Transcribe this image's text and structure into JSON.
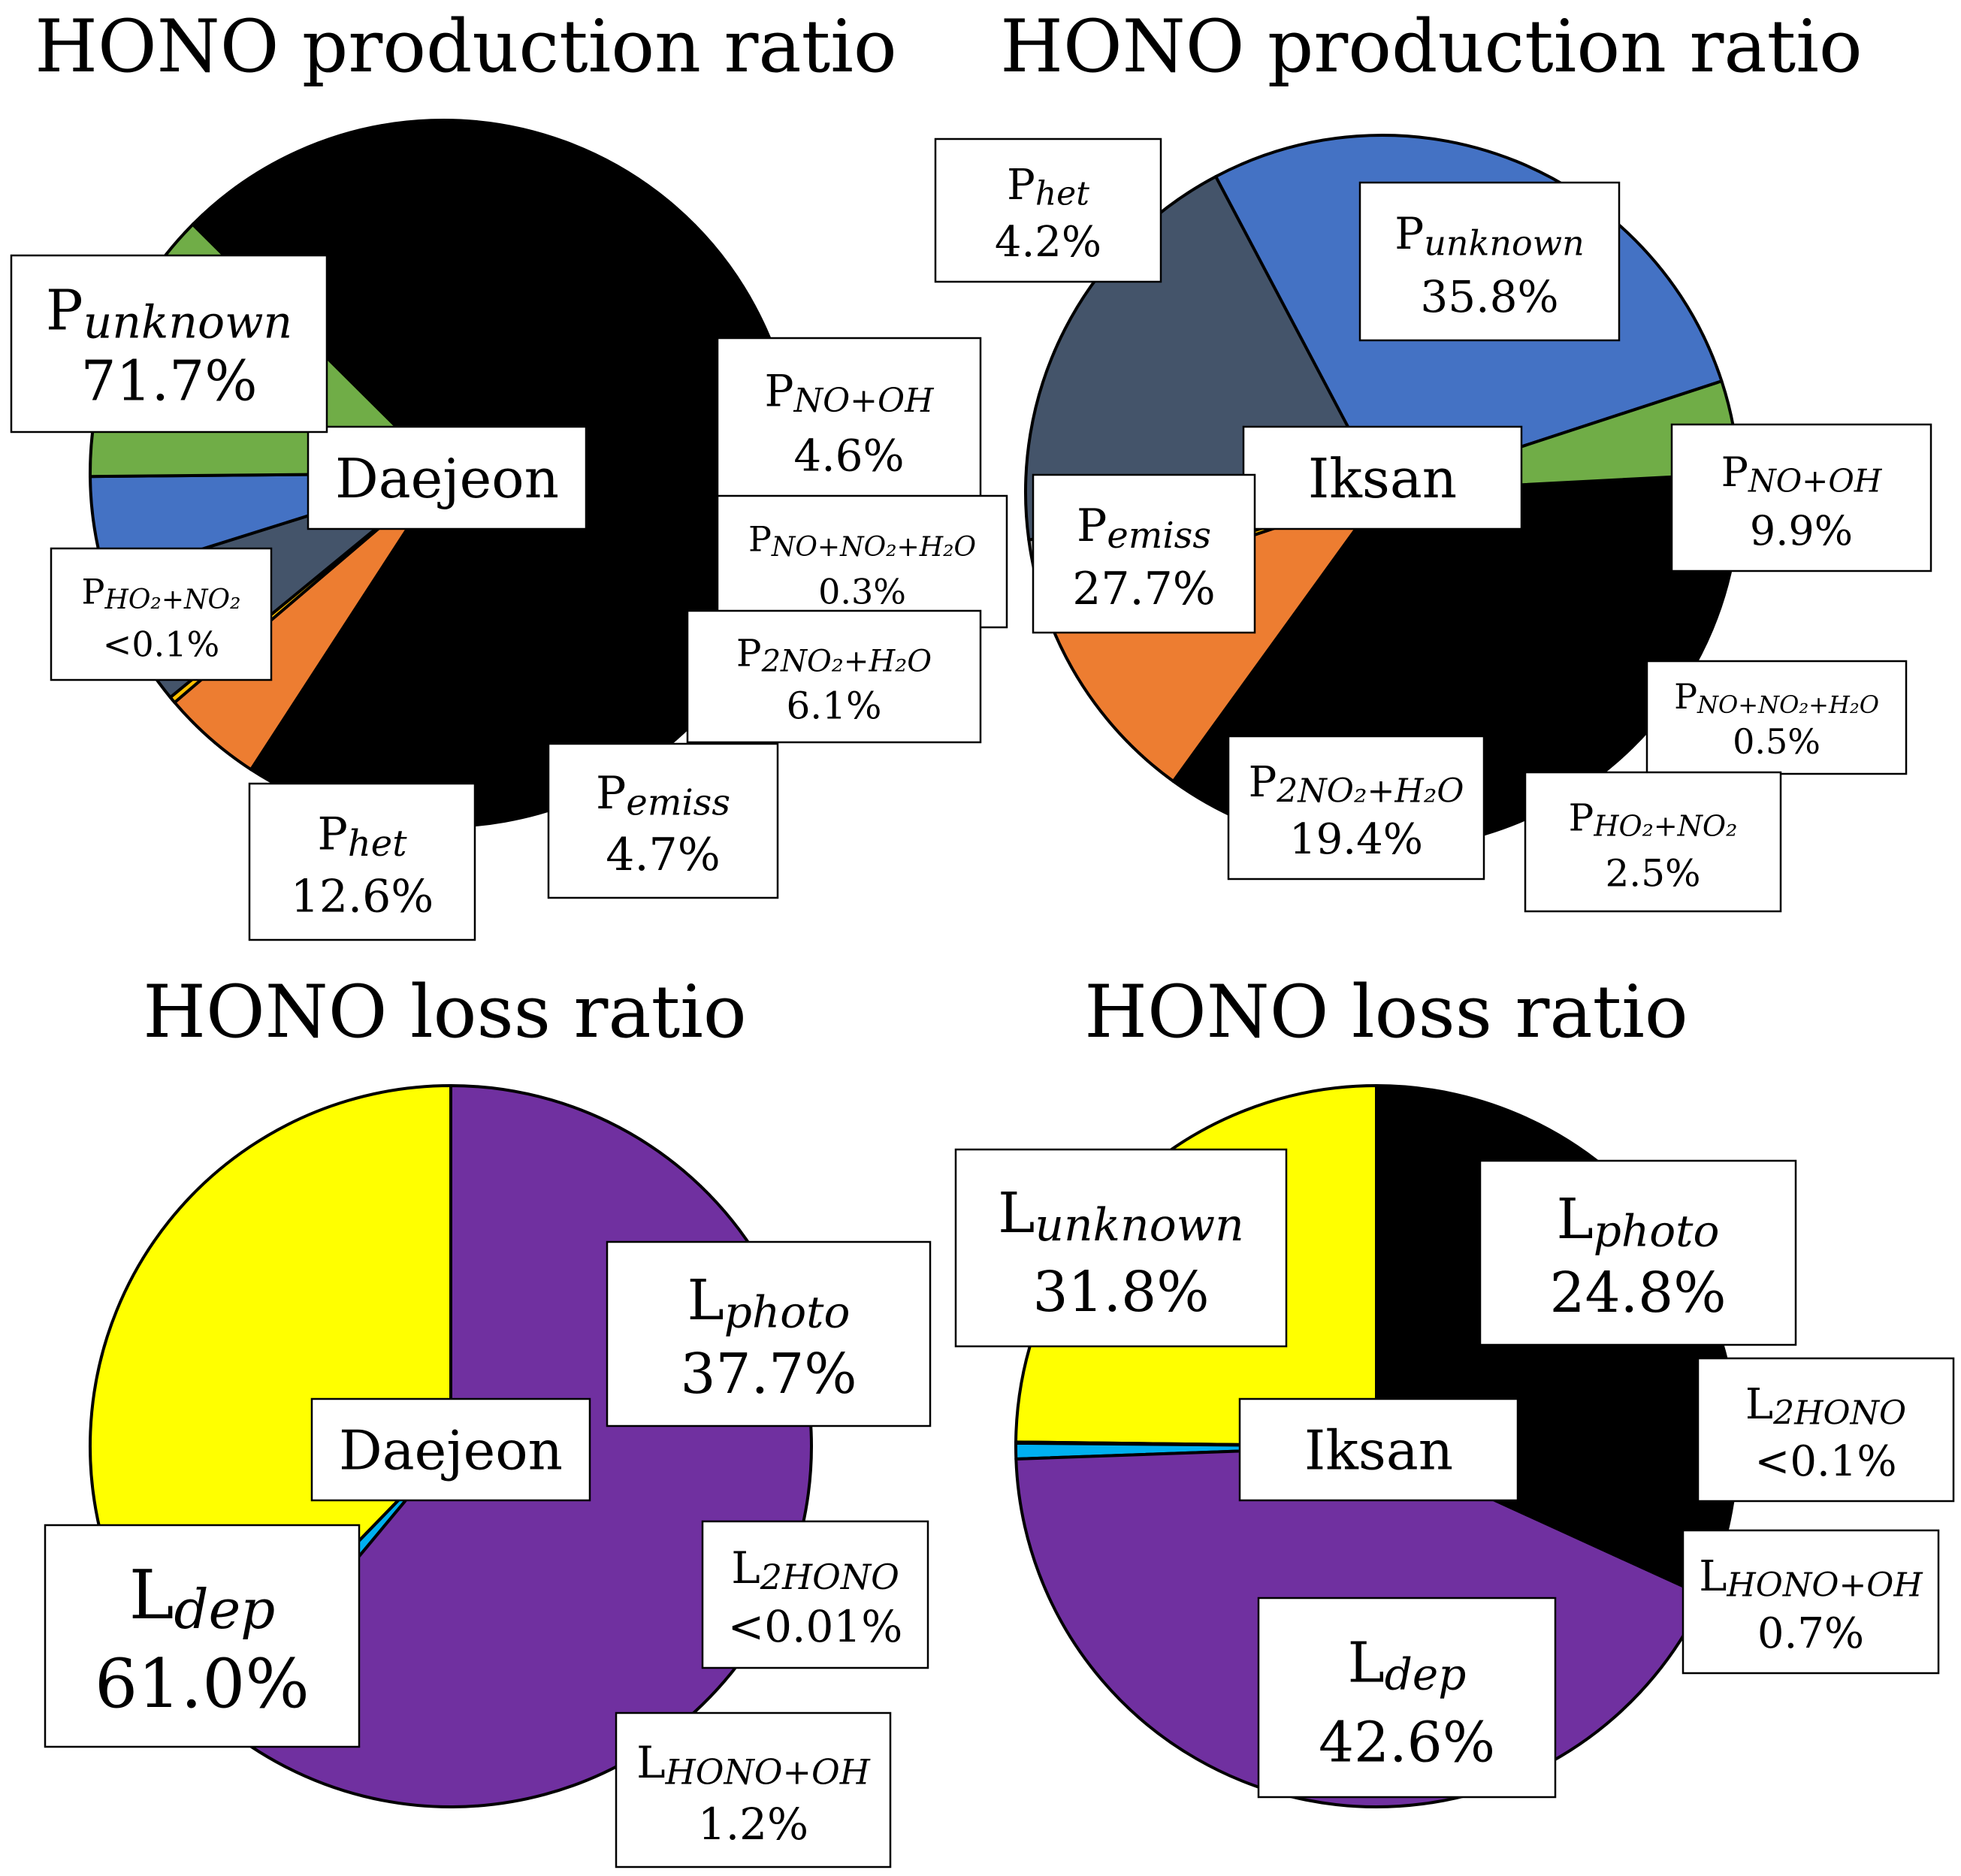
{
  "chart_data": [
    {
      "type": "pie",
      "title": "HONO production ratio",
      "site": "Daejeon",
      "slices": [
        {
          "letter": "P",
          "sub": "unknown",
          "value_label": "71.7%",
          "value": 71.7,
          "color": "#000000"
        },
        {
          "letter": "P",
          "sub": "NO+OH",
          "value_label": "4.6%",
          "value": 4.6,
          "color": "#ED7D31"
        },
        {
          "letter": "P",
          "sub": "NO+NO₂+H₂O",
          "value_label": "0.3%",
          "value": 0.3,
          "color": "#FFC000"
        },
        {
          "letter": "P",
          "sub": "2NO₂+H₂O",
          "value_label": "6.1%",
          "value": 6.1,
          "color": "#44546A"
        },
        {
          "letter": "P",
          "sub": "emiss",
          "value_label": "4.7%",
          "value": 4.7,
          "color": "#4472C4"
        },
        {
          "letter": "P",
          "sub": "het",
          "value_label": "12.6%",
          "value": 12.6,
          "color": "#70AD47"
        },
        {
          "letter": "P",
          "sub": "HO₂+NO₂",
          "value_label": "<0.1%",
          "value": 0.05,
          "color": "#A5A5A5"
        }
      ]
    },
    {
      "type": "pie",
      "title": "HONO production ratio",
      "site": "Iksan",
      "slices": [
        {
          "letter": "P",
          "sub": "unknown",
          "value_label": "35.8%",
          "value": 35.8,
          "color": "#000000"
        },
        {
          "letter": "P",
          "sub": "NO+OH",
          "value_label": "9.9%",
          "value": 9.9,
          "color": "#ED7D31"
        },
        {
          "letter": "P",
          "sub": "NO+NO₂+H₂O",
          "value_label": "0.5%",
          "value": 0.5,
          "color": "#FFC000"
        },
        {
          "letter": "P",
          "sub": "HO₂+NO₂",
          "value_label": "2.5%",
          "value": 2.5,
          "color": "#A5A5A5"
        },
        {
          "letter": "P",
          "sub": "2NO₂+H₂O",
          "value_label": "19.4%",
          "value": 19.4,
          "color": "#44546A"
        },
        {
          "letter": "P",
          "sub": "emiss",
          "value_label": "27.7%",
          "value": 27.7,
          "color": "#4472C4"
        },
        {
          "letter": "P",
          "sub": "het",
          "value_label": "4.2%",
          "value": 4.2,
          "color": "#70AD47"
        }
      ]
    },
    {
      "type": "pie",
      "title": "HONO loss ratio",
      "site": "Daejeon",
      "slices": [
        {
          "letter": "L",
          "sub": "photo",
          "value_label": "37.7%",
          "value": 37.7,
          "color": "#FFFF00"
        },
        {
          "letter": "L",
          "sub": "2HONO",
          "value_label": "<0.01%",
          "value": 0.01,
          "color": "#A5A5A5"
        },
        {
          "letter": "L",
          "sub": "HONO+OH",
          "value_label": "1.2%",
          "value": 1.2,
          "color": "#00B0F0"
        },
        {
          "letter": "L",
          "sub": "dep",
          "value_label": "61.0%",
          "value": 61.0,
          "color": "#7030A0"
        }
      ]
    },
    {
      "type": "pie",
      "title": "HONO loss ratio",
      "site": "Iksan",
      "slices": [
        {
          "letter": "L",
          "sub": "photo",
          "value_label": "24.8%",
          "value": 24.8,
          "color": "#FFFF00"
        },
        {
          "letter": "L",
          "sub": "2HONO",
          "value_label": "<0.1%",
          "value": 0.05,
          "color": "#A5A5A5"
        },
        {
          "letter": "L",
          "sub": "HONO+OH",
          "value_label": "0.7%",
          "value": 0.7,
          "color": "#00B0F0"
        },
        {
          "letter": "L",
          "sub": "dep",
          "value_label": "42.6%",
          "value": 42.6,
          "color": "#7030A0"
        },
        {
          "letter": "L",
          "sub": "unknown",
          "value_label": "31.8%",
          "value": 31.8,
          "color": "#000000"
        }
      ]
    }
  ]
}
